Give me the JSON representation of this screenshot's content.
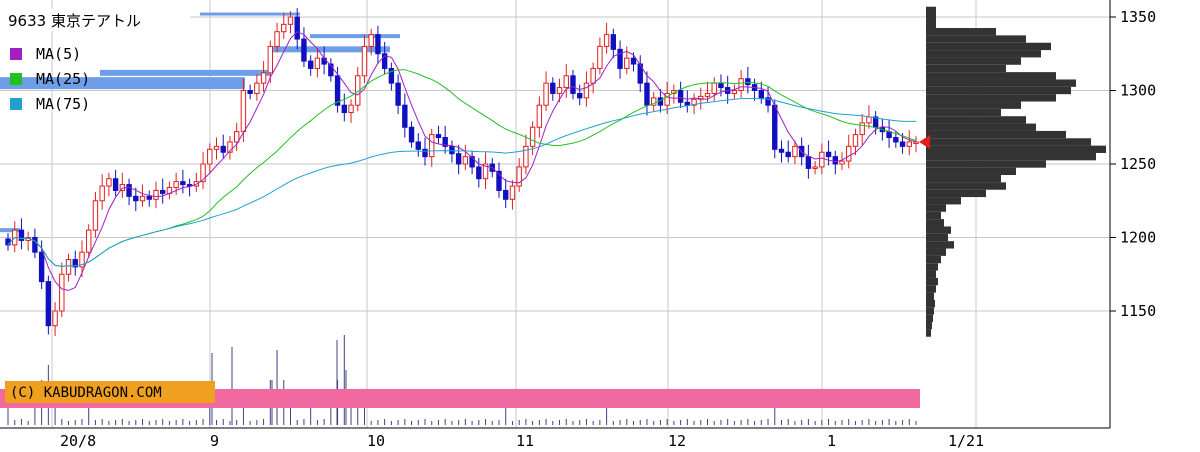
{
  "chart_data": {
    "type": "candlestick",
    "title": "9633 東京テアトル",
    "legend": [
      {
        "name": "MA(5)",
        "color": "#a020c0"
      },
      {
        "name": "MA(25)",
        "color": "#22c022"
      },
      {
        "name": "MA(75)",
        "color": "#20a0d0"
      }
    ],
    "y_ticks": [
      1150,
      1200,
      1250,
      1300,
      1350
    ],
    "ylim": [
      1100,
      1360
    ],
    "x_labels": [
      "20/8",
      "9",
      "10",
      "11",
      "12",
      "1",
      "1/21"
    ],
    "copyright": "(C) KABUDRAGON.COM",
    "last_price": 1265,
    "colors": {
      "up": "#e02020",
      "down": "#1010c0",
      "ma5": "#a020c0",
      "ma25": "#22c022",
      "ma75": "#20a0d0",
      "profile": "#333333",
      "band": "#f06aa0",
      "copyright_bg": "#f0a020",
      "resistance": "#6e9ee8"
    },
    "closes": [
      1195,
      1205,
      1198,
      1200,
      1190,
      1170,
      1140,
      1150,
      1175,
      1185,
      1180,
      1190,
      1205,
      1225,
      1235,
      1240,
      1232,
      1236,
      1228,
      1225,
      1228,
      1226,
      1232,
      1230,
      1234,
      1238,
      1236,
      1235,
      1238,
      1250,
      1260,
      1262,
      1258,
      1265,
      1272,
      1300,
      1298,
      1305,
      1312,
      1330,
      1340,
      1345,
      1350,
      1335,
      1320,
      1315,
      1322,
      1318,
      1310,
      1290,
      1285,
      1290,
      1310,
      1330,
      1338,
      1325,
      1315,
      1305,
      1290,
      1275,
      1265,
      1260,
      1255,
      1270,
      1268,
      1262,
      1257,
      1250,
      1255,
      1248,
      1240,
      1250,
      1245,
      1232,
      1226,
      1235,
      1248,
      1262,
      1275,
      1290,
      1305,
      1298,
      1302,
      1310,
      1298,
      1295,
      1305,
      1315,
      1330,
      1338,
      1328,
      1315,
      1322,
      1318,
      1305,
      1290,
      1295,
      1290,
      1298,
      1300,
      1292,
      1290,
      1294,
      1296,
      1298,
      1305,
      1302,
      1298,
      1300,
      1308,
      1304,
      1300,
      1295,
      1290,
      1260,
      1258,
      1255,
      1262,
      1255,
      1247,
      1248,
      1258,
      1255,
      1250,
      1252,
      1262,
      1270,
      1278,
      1282,
      1275,
      1272,
      1268,
      1265,
      1262,
      1265,
      1265
    ],
    "volume": [
      2,
      1,
      1,
      1,
      2,
      3,
      4,
      2,
      1,
      1,
      1,
      1,
      2,
      1,
      1,
      1,
      1,
      1,
      1,
      1,
      1,
      1,
      1,
      1,
      1,
      1,
      1,
      1,
      1,
      1,
      2,
      1,
      1,
      1,
      1,
      2,
      1,
      1,
      1,
      3,
      5,
      3,
      2,
      1,
      1,
      2,
      1,
      1,
      2,
      3,
      6,
      2,
      2,
      2,
      1,
      1,
      1,
      1,
      1,
      1,
      1,
      1,
      1,
      1,
      1,
      1,
      1,
      1,
      1,
      1,
      1,
      1,
      1,
      1,
      2,
      1,
      1,
      1,
      1,
      1,
      1,
      1,
      1,
      1,
      1,
      1,
      1,
      1,
      1,
      2,
      1,
      1,
      1,
      1,
      1,
      1,
      1,
      1,
      1,
      1,
      1,
      1,
      1,
      1,
      1,
      1,
      1,
      1,
      1,
      1,
      1,
      1,
      1,
      1,
      2,
      1,
      1,
      1,
      1,
      1,
      1,
      1,
      1,
      1,
      1,
      1,
      1,
      1,
      1,
      1,
      1,
      1,
      1,
      1,
      1,
      1
    ],
    "volume_profile": [
      [
        1340,
        70
      ],
      [
        1335,
        100
      ],
      [
        1330,
        125
      ],
      [
        1325,
        115
      ],
      [
        1320,
        95
      ],
      [
        1315,
        80
      ],
      [
        1310,
        130
      ],
      [
        1305,
        150
      ],
      [
        1300,
        145
      ],
      [
        1295,
        130
      ],
      [
        1290,
        95
      ],
      [
        1285,
        75
      ],
      [
        1280,
        100
      ],
      [
        1275,
        110
      ],
      [
        1270,
        140
      ],
      [
        1265,
        165
      ],
      [
        1260,
        180
      ],
      [
        1255,
        170
      ],
      [
        1250,
        120
      ],
      [
        1245,
        90
      ],
      [
        1240,
        75
      ],
      [
        1235,
        80
      ],
      [
        1230,
        60
      ],
      [
        1225,
        35
      ],
      [
        1220,
        20
      ],
      [
        1215,
        15
      ],
      [
        1210,
        18
      ],
      [
        1205,
        25
      ],
      [
        1200,
        22
      ],
      [
        1195,
        28
      ],
      [
        1190,
        20
      ],
      [
        1185,
        15
      ],
      [
        1180,
        12
      ],
      [
        1175,
        10
      ],
      [
        1170,
        12
      ],
      [
        1165,
        10
      ],
      [
        1160,
        8
      ],
      [
        1155,
        9
      ],
      [
        1150,
        8
      ],
      [
        1145,
        7
      ],
      [
        1140,
        6
      ],
      [
        1135,
        5
      ]
    ]
  }
}
